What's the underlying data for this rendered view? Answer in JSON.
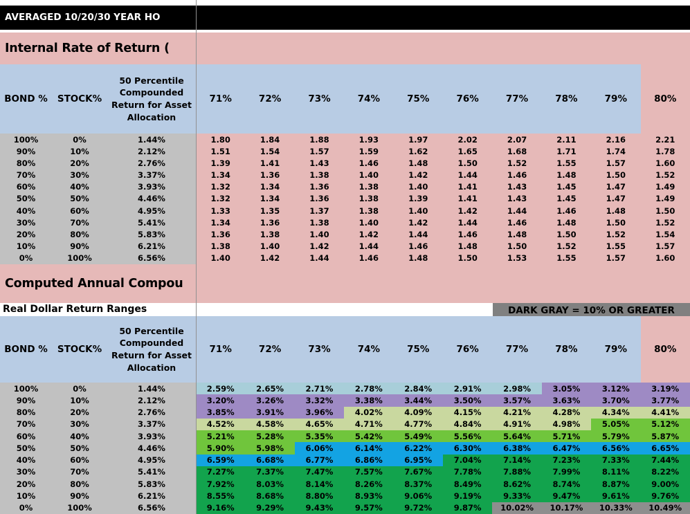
{
  "title_bar": {
    "text": "AVERAGED 10/20/30 YEAR HO"
  },
  "section1": {
    "heading": "Internal Rate of Return ("
  },
  "section2": {
    "heading": "Computed Annual Compou"
  },
  "legend": {
    "left_label": "Real Dollar Return Ranges",
    "right_label": "DARK GRAY = 10% OR GREATER"
  },
  "columns": {
    "bond": "BOND %",
    "stock": "STOCK%",
    "percentile": "50 Percentile Compounded Return for Asset Allocation",
    "rates": [
      "71%",
      "72%",
      "73%",
      "74%",
      "75%",
      "76%",
      "77%",
      "78%",
      "79%",
      "80%"
    ]
  },
  "rows": [
    {
      "bond": "100%",
      "stock": "0%",
      "percentile": "1.44%"
    },
    {
      "bond": "90%",
      "stock": "10%",
      "percentile": "2.12%"
    },
    {
      "bond": "80%",
      "stock": "20%",
      "percentile": "2.76%"
    },
    {
      "bond": "70%",
      "stock": "30%",
      "percentile": "3.37%"
    },
    {
      "bond": "60%",
      "stock": "40%",
      "percentile": "3.93%"
    },
    {
      "bond": "50%",
      "stock": "50%",
      "percentile": "4.46%"
    },
    {
      "bond": "40%",
      "stock": "60%",
      "percentile": "4.95%"
    },
    {
      "bond": "30%",
      "stock": "70%",
      "percentile": "5.41%"
    },
    {
      "bond": "20%",
      "stock": "80%",
      "percentile": "5.83%"
    },
    {
      "bond": "10%",
      "stock": "90%",
      "percentile": "6.21%"
    },
    {
      "bond": "0%",
      "stock": "100%",
      "percentile": "6.56%"
    }
  ],
  "table1": {
    "values": [
      [
        "1.80",
        "1.84",
        "1.88",
        "1.93",
        "1.97",
        "2.02",
        "2.07",
        "2.11",
        "2.16",
        "2.21"
      ],
      [
        "1.51",
        "1.54",
        "1.57",
        "1.59",
        "1.62",
        "1.65",
        "1.68",
        "1.71",
        "1.74",
        "1.78"
      ],
      [
        "1.39",
        "1.41",
        "1.43",
        "1.46",
        "1.48",
        "1.50",
        "1.52",
        "1.55",
        "1.57",
        "1.60"
      ],
      [
        "1.34",
        "1.36",
        "1.38",
        "1.40",
        "1.42",
        "1.44",
        "1.46",
        "1.48",
        "1.50",
        "1.52"
      ],
      [
        "1.32",
        "1.34",
        "1.36",
        "1.38",
        "1.40",
        "1.41",
        "1.43",
        "1.45",
        "1.47",
        "1.49"
      ],
      [
        "1.32",
        "1.34",
        "1.36",
        "1.38",
        "1.39",
        "1.41",
        "1.43",
        "1.45",
        "1.47",
        "1.49"
      ],
      [
        "1.33",
        "1.35",
        "1.37",
        "1.38",
        "1.40",
        "1.42",
        "1.44",
        "1.46",
        "1.48",
        "1.50"
      ],
      [
        "1.34",
        "1.36",
        "1.38",
        "1.40",
        "1.42",
        "1.44",
        "1.46",
        "1.48",
        "1.50",
        "1.52"
      ],
      [
        "1.36",
        "1.38",
        "1.40",
        "1.42",
        "1.44",
        "1.46",
        "1.48",
        "1.50",
        "1.52",
        "1.54"
      ],
      [
        "1.38",
        "1.40",
        "1.42",
        "1.44",
        "1.46",
        "1.48",
        "1.50",
        "1.52",
        "1.55",
        "1.57"
      ],
      [
        "1.40",
        "1.42",
        "1.44",
        "1.46",
        "1.48",
        "1.50",
        "1.53",
        "1.55",
        "1.57",
        "1.60"
      ]
    ]
  },
  "table2": {
    "values": [
      [
        "2.59%",
        "2.65%",
        "2.71%",
        "2.78%",
        "2.84%",
        "2.91%",
        "2.98%",
        "3.05%",
        "3.12%",
        "3.19%"
      ],
      [
        "3.20%",
        "3.26%",
        "3.32%",
        "3.38%",
        "3.44%",
        "3.50%",
        "3.57%",
        "3.63%",
        "3.70%",
        "3.77%"
      ],
      [
        "3.85%",
        "3.91%",
        "3.96%",
        "4.02%",
        "4.09%",
        "4.15%",
        "4.21%",
        "4.28%",
        "4.34%",
        "4.41%"
      ],
      [
        "4.52%",
        "4.58%",
        "4.65%",
        "4.71%",
        "4.77%",
        "4.84%",
        "4.91%",
        "4.98%",
        "5.05%",
        "5.12%"
      ],
      [
        "5.21%",
        "5.28%",
        "5.35%",
        "5.42%",
        "5.49%",
        "5.56%",
        "5.64%",
        "5.71%",
        "5.79%",
        "5.87%"
      ],
      [
        "5.90%",
        "5.98%",
        "6.06%",
        "6.14%",
        "6.22%",
        "6.30%",
        "6.38%",
        "6.47%",
        "6.56%",
        "6.65%"
      ],
      [
        "6.59%",
        "6.68%",
        "6.77%",
        "6.86%",
        "6.95%",
        "7.04%",
        "7.14%",
        "7.23%",
        "7.33%",
        "7.44%"
      ],
      [
        "7.27%",
        "7.37%",
        "7.47%",
        "7.57%",
        "7.67%",
        "7.78%",
        "7.88%",
        "7.99%",
        "8.11%",
        "8.22%"
      ],
      [
        "7.92%",
        "8.03%",
        "8.14%",
        "8.26%",
        "8.37%",
        "8.49%",
        "8.62%",
        "8.74%",
        "8.87%",
        "9.00%"
      ],
      [
        "8.55%",
        "8.68%",
        "8.80%",
        "8.93%",
        "9.06%",
        "9.19%",
        "9.33%",
        "9.47%",
        "9.61%",
        "9.76%"
      ],
      [
        "9.16%",
        "9.29%",
        "9.43%",
        "9.57%",
        "9.72%",
        "9.87%",
        "10.02%",
        "10.17%",
        "10.33%",
        "10.49%"
      ]
    ],
    "value_bands": [
      {
        "max": 3,
        "color": "#a8ced9"
      },
      {
        "max": 4,
        "color": "#9e8ac4"
      },
      {
        "max": 5,
        "color": "#c9d89f"
      },
      {
        "max": 6,
        "color": "#70c53c"
      },
      {
        "max": 7,
        "color": "#13a3e3"
      },
      {
        "max": 10,
        "color": "#12a34d"
      },
      {
        "max": 9999,
        "color": "#8e8e8e"
      }
    ]
  },
  "colors": {
    "title_bar_bg": "#000000",
    "title_bar_text": "#ffffff",
    "heading_band_bg": "#e6b9b8",
    "table_header_bg": "#b8cce4",
    "label_column_bg": "#c1c1c1",
    "irr_data_bg": "#e6b9b8",
    "legend_gray_bg": "#808080",
    "pane_divider": "#919191"
  }
}
